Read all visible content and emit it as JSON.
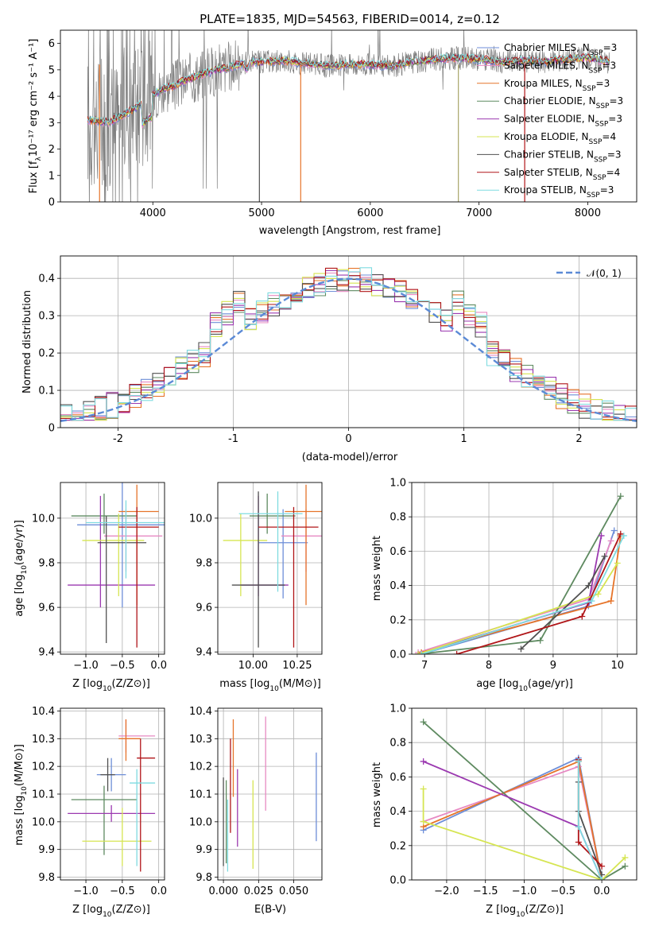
{
  "title": "PLATE=1835, MJD=54563, FIBERID=0014, z=0.12",
  "colors": [
    "#6d8ed8",
    "#e78ac3",
    "#e6742a",
    "#5e8a60",
    "#9b39b0",
    "#d6e552",
    "#505050",
    "#b01518",
    "#7fdbe0"
  ],
  "chart_data": [
    {
      "id": "spectrum",
      "type": "line",
      "xlabel": "wavelength [Angstrom, rest frame]",
      "ylabel_main": "Flux [f",
      "ylabel_sub": "λ",
      "ylabel_rest": "10⁻¹⁷ erg cm⁻² s⁻¹ A⁻¹]",
      "xlim": [
        3150,
        8450
      ],
      "ylim": [
        0,
        6.5
      ],
      "xticks": [
        4000,
        5000,
        6000,
        7000,
        8000
      ],
      "yticks": [
        0,
        1,
        2,
        3,
        4,
        5,
        6
      ],
      "series": [
        {
          "name": "Chabrier MILES",
          "ssp": "3"
        },
        {
          "name": "Salpeter MILES",
          "ssp": "3"
        },
        {
          "name": "Kroupa MILES",
          "ssp": "3"
        },
        {
          "name": "Chabrier ELODIE",
          "ssp": "3"
        },
        {
          "name": "Salpeter ELODIE",
          "ssp": "3"
        },
        {
          "name": "Kroupa ELODIE",
          "ssp": "4"
        },
        {
          "name": "Chabrier STELIB",
          "ssp": "3"
        },
        {
          "name": "Salpeter STELIB",
          "ssp": "4"
        },
        {
          "name": "Kroupa STELIB",
          "ssp": "3"
        }
      ],
      "continuum": {
        "x": [
          3400,
          3500,
          3600,
          3700,
          3800,
          3900,
          4000,
          4100,
          4200,
          4300,
          4400,
          4500,
          4600,
          4700,
          4800,
          4900,
          5000,
          5200,
          5400,
          5600,
          5800,
          6000,
          6200,
          6400,
          6600,
          6800,
          7000,
          7200,
          7400,
          7600,
          7800,
          8000,
          8200
        ],
        "y": [
          3.1,
          3.05,
          3.0,
          3.25,
          3.45,
          3.75,
          4.05,
          4.3,
          4.4,
          4.6,
          4.75,
          4.9,
          5.0,
          5.1,
          5.2,
          5.3,
          5.3,
          5.35,
          5.25,
          5.15,
          5.2,
          5.2,
          5.15,
          5.3,
          5.4,
          5.45,
          5.4,
          5.3,
          5.35,
          5.3,
          5.4,
          5.45,
          5.3
        ]
      },
      "spikes": [
        {
          "x": 3510,
          "color": "#e6742a"
        },
        {
          "x": 5360,
          "color": "#e6742a"
        },
        {
          "x": 6810,
          "color": "#a8a56a"
        },
        {
          "x": 7420,
          "color": "#b01518"
        },
        {
          "x": 4980,
          "color": "#505050"
        }
      ]
    },
    {
      "id": "residuals",
      "type": "step",
      "xlabel": "(data-model)/error",
      "ylabel": "Normed distribution",
      "xlim": [
        -2.5,
        2.5
      ],
      "ylim": [
        0,
        0.46
      ],
      "xticks": [
        -2,
        -1,
        0,
        1,
        2
      ],
      "yticks": [
        0.0,
        0.1,
        0.2,
        0.3,
        0.4
      ],
      "normal_label": "𝒩(0, 1)",
      "normal_color": "#5b8ad6",
      "bin_width": 0.1,
      "bin_start": -2.5
    },
    {
      "id": "z-age",
      "type": "errorbar",
      "xlabel_main": "Z [log",
      "xlabel_sub": "10",
      "xlabel_rest": "(Z/Z⊙)]",
      "ylabel_main": "age  [log",
      "ylabel_sub": "10",
      "ylabel_rest": "(age/yr)]",
      "xlim": [
        -1.35,
        0.08
      ],
      "ylim": [
        9.39,
        10.16
      ],
      "xticks": [
        -1.0,
        -0.5,
        0.0
      ],
      "xticklabels": [
        "−1.0",
        "−0.5",
        "0.0"
      ],
      "yticks": [
        9.4,
        9.6,
        9.8,
        10.0
      ],
      "yticklabels": [
        "9.4",
        "9.6",
        "9.8",
        "10.0"
      ],
      "points": [
        {
          "x": -0.5,
          "y": 9.97,
          "xerr": [
            0.62,
            0.62
          ],
          "yerr": [
            0.37,
            0.37
          ],
          "c": 0
        },
        {
          "x": -0.45,
          "y": 9.92,
          "xerr": [
            0.3,
            0.5
          ],
          "yerr": [
            0.16,
            0.12
          ],
          "c": 1
        },
        {
          "x": -0.3,
          "y": 10.03,
          "xerr": [
            0.25,
            0.3
          ],
          "yerr": [
            0.42,
            0.12
          ],
          "c": 2
        },
        {
          "x": -0.75,
          "y": 10.01,
          "xerr": [
            0.45,
            0.45
          ],
          "yerr": [
            0.08,
            0.1
          ],
          "c": 3
        },
        {
          "x": -0.8,
          "y": 9.7,
          "xerr": [
            0.45,
            0.75
          ],
          "yerr": [
            0.1,
            0.4
          ],
          "c": 4
        },
        {
          "x": -0.55,
          "y": 9.9,
          "xerr": [
            0.5,
            0.35
          ],
          "yerr": [
            0.25,
            0.12
          ],
          "c": 5
        },
        {
          "x": -0.72,
          "y": 9.89,
          "xerr": [
            0.12,
            0.55
          ],
          "yerr": [
            0.45,
            0.12
          ],
          "c": 6
        },
        {
          "x": -0.3,
          "y": 9.96,
          "xerr": [
            0.25,
            0.3
          ],
          "yerr": [
            0.54,
            0.09
          ],
          "c": 7
        },
        {
          "x": -0.45,
          "y": 9.98,
          "xerr": [
            0.55,
            0.55
          ],
          "yerr": [
            0.25,
            0.1
          ],
          "c": 8
        }
      ]
    },
    {
      "id": "mass-age",
      "type": "errorbar",
      "xlabel_main": "mass [log",
      "xlabel_sub": "10",
      "xlabel_rest": "(M/M⊙)]",
      "ylabel_main": "",
      "ylabel_sub": "",
      "ylabel_rest": "",
      "xlim": [
        9.8,
        10.39
      ],
      "ylim": [
        9.39,
        10.16
      ],
      "xticks": [
        10.0,
        10.25
      ],
      "xticklabels": [
        "10.00",
        "10.25"
      ],
      "yticks": [
        9.4,
        9.6,
        9.8,
        10.0
      ],
      "yticklabels": [
        "9.4",
        "9.6",
        "9.8",
        "10.0"
      ],
      "points": [
        {
          "x": 10.17,
          "y": 9.89,
          "xerr": [
            0.14,
            0.14
          ],
          "yerr": [
            0.25,
            0.15
          ],
          "c": 0
        },
        {
          "x": 10.3,
          "y": 9.92,
          "xerr": [
            0.14,
            0.12
          ],
          "yerr": [
            0.16,
            0.12
          ],
          "c": 1
        },
        {
          "x": 10.3,
          "y": 10.03,
          "xerr": [
            0.12,
            0.14
          ],
          "yerr": [
            0.42,
            0.12
          ],
          "c": 2
        },
        {
          "x": 10.08,
          "y": 10.01,
          "xerr": [
            0.1,
            0.16
          ],
          "yerr": [
            0.08,
            0.1
          ],
          "c": 3
        },
        {
          "x": 10.03,
          "y": 9.7,
          "xerr": [
            0.1,
            0.17
          ],
          "yerr": [
            0.05,
            0.4
          ],
          "c": 4
        },
        {
          "x": 9.93,
          "y": 9.9,
          "xerr": [
            0.1,
            0.15
          ],
          "yerr": [
            0.25,
            0.12
          ],
          "c": 5
        },
        {
          "x": 10.03,
          "y": 9.7,
          "xerr": [
            0.15,
            0.15
          ],
          "yerr": [
            0.28,
            0.42
          ],
          "c": 6
        },
        {
          "x": 10.23,
          "y": 9.96,
          "xerr": [
            0.2,
            0.14
          ],
          "yerr": [
            0.54,
            0.09
          ],
          "c": 7
        },
        {
          "x": 10.14,
          "y": 10.02,
          "xerr": [
            0.22,
            0.14
          ],
          "yerr": [
            0.35,
            0.1
          ],
          "c": 8
        }
      ]
    },
    {
      "id": "age-weight",
      "type": "line",
      "xlabel_main": "age  [log",
      "xlabel_sub": "10",
      "xlabel_rest": "(age/yr)]",
      "ylabel": "mass weight",
      "xlim": [
        6.8,
        10.3
      ],
      "ylim": [
        0,
        1.0
      ],
      "xticks": [
        7,
        8,
        9,
        10
      ],
      "yticks": [
        0.0,
        0.2,
        0.4,
        0.6,
        0.8,
        1.0
      ],
      "yticklabels": [
        "0.0",
        "0.2",
        "0.4",
        "0.6",
        "0.8",
        "1.0"
      ],
      "series": [
        {
          "c": 0,
          "x": [
            6.95,
            9.55,
            9.95
          ],
          "y": [
            0.0,
            0.28,
            0.72
          ]
        },
        {
          "c": 1,
          "x": [
            6.9,
            9.55,
            9.9
          ],
          "y": [
            0.01,
            0.32,
            0.66
          ]
        },
        {
          "c": 2,
          "x": [
            6.95,
            9.9,
            10.05
          ],
          "y": [
            0.01,
            0.31,
            0.69
          ]
        },
        {
          "c": 3,
          "x": [
            6.9,
            8.8,
            10.05
          ],
          "y": [
            0.0,
            0.08,
            0.92
          ]
        },
        {
          "c": 4,
          "x": [
            6.9,
            9.55,
            9.75
          ],
          "y": [
            0.0,
            0.3,
            0.69
          ]
        },
        {
          "c": 5,
          "x": [
            6.9,
            9.7,
            10.0
          ],
          "y": [
            0.0,
            0.35,
            0.53
          ]
        },
        {
          "c": 6,
          "x": [
            8.5,
            9.55,
            9.8
          ],
          "y": [
            0.03,
            0.4,
            0.57
          ]
        },
        {
          "c": 7,
          "x": [
            7.5,
            9.45,
            10.05
          ],
          "y": [
            0.0,
            0.22,
            0.7
          ]
        },
        {
          "c": 8,
          "x": [
            6.95,
            9.6,
            10.1
          ],
          "y": [
            0.0,
            0.31,
            0.69
          ]
        }
      ]
    },
    {
      "id": "z-mass",
      "type": "errorbar",
      "xlabel_main": "Z [log",
      "xlabel_sub": "10",
      "xlabel_rest": "(Z/Z⊙)]",
      "ylabel_main": "mass [log",
      "ylabel_sub": "10",
      "ylabel_rest": "(M/M⊙)]",
      "xlim": [
        -1.35,
        0.08
      ],
      "ylim": [
        9.79,
        10.41
      ],
      "xticks": [
        -1.0,
        -0.5,
        0.0
      ],
      "xticklabels": [
        "−1.0",
        "−0.5",
        "0.0"
      ],
      "yticks": [
        9.8,
        9.9,
        10.0,
        10.1,
        10.2,
        10.3,
        10.4
      ],
      "yticklabels": [
        "9.8",
        "9.9",
        "10.0",
        "10.1",
        "10.2",
        "10.3",
        "10.4"
      ],
      "points": [
        {
          "x": -0.65,
          "y": 10.17,
          "xerr": [
            0.2,
            0.2
          ],
          "yerr": [
            0.06,
            0.06
          ],
          "c": 0
        },
        {
          "x": -0.45,
          "y": 10.31,
          "xerr": [
            0.1,
            0.4
          ],
          "yerr": [
            0.06,
            0.06
          ],
          "c": 1
        },
        {
          "x": -0.45,
          "y": 10.3,
          "xerr": [
            0.1,
            0.2
          ],
          "yerr": [
            0.08,
            0.07
          ],
          "c": 2
        },
        {
          "x": -0.75,
          "y": 10.08,
          "xerr": [
            0.45,
            0.45
          ],
          "yerr": [
            0.2,
            0.05
          ],
          "c": 3
        },
        {
          "x": -0.65,
          "y": 10.03,
          "xerr": [
            0.6,
            0.6
          ],
          "yerr": [
            0.03,
            0.03
          ],
          "c": 4
        },
        {
          "x": -0.5,
          "y": 9.93,
          "xerr": [
            0.55,
            0.4
          ],
          "yerr": [
            0.09,
            0.12
          ],
          "c": 5
        },
        {
          "x": -0.7,
          "y": 10.17,
          "xerr": [
            0.1,
            0.1
          ],
          "yerr": [
            0.06,
            0.06
          ],
          "c": 6
        },
        {
          "x": -0.25,
          "y": 10.23,
          "xerr": [
            0.05,
            0.2
          ],
          "yerr": [
            0.41,
            0.07
          ],
          "c": 7
        },
        {
          "x": -0.3,
          "y": 10.14,
          "xerr": [
            0.1,
            0.25
          ],
          "yerr": [
            0.3,
            0.05
          ],
          "c": 8
        }
      ]
    },
    {
      "id": "ebv-mass",
      "type": "errorbar",
      "xlabel_main": "E(B-V)",
      "xlabel_sub": "",
      "xlabel_rest": "",
      "ylabel_main": "",
      "ylabel_sub": "",
      "ylabel_rest": "",
      "xlim": [
        -0.004,
        0.07
      ],
      "ylim": [
        9.79,
        10.41
      ],
      "xticks": [
        0.0,
        0.025,
        0.05
      ],
      "xticklabels": [
        "0.000",
        "0.025",
        "0.050"
      ],
      "yticks": [
        9.8,
        9.9,
        10.0,
        10.1,
        10.2,
        10.3,
        10.4
      ],
      "yticklabels": [
        "9.8",
        "9.9",
        "10.0",
        "10.1",
        "10.2",
        "10.3",
        "10.4"
      ],
      "points": [
        {
          "x": 0.066,
          "y": 10.09,
          "xerr": [
            0,
            0
          ],
          "yerr": [
            0.16,
            0.16
          ],
          "c": 0
        },
        {
          "x": 0.03,
          "y": 10.21,
          "xerr": [
            0,
            0
          ],
          "yerr": [
            0.17,
            0.17
          ],
          "c": 1
        },
        {
          "x": 0.007,
          "y": 10.23,
          "xerr": [
            0,
            0
          ],
          "yerr": [
            0.14,
            0.14
          ],
          "c": 2
        },
        {
          "x": 0.002,
          "y": 10.0,
          "xerr": [
            0,
            0
          ],
          "yerr": [
            0.15,
            0.15
          ],
          "c": 3
        },
        {
          "x": 0.01,
          "y": 10.05,
          "xerr": [
            0,
            0
          ],
          "yerr": [
            0.14,
            0.14
          ],
          "c": 4
        },
        {
          "x": 0.021,
          "y": 9.99,
          "xerr": [
            0,
            0
          ],
          "yerr": [
            0.16,
            0.16
          ],
          "c": 5
        },
        {
          "x": 0.0,
          "y": 10.0,
          "xerr": [
            0,
            0
          ],
          "yerr": [
            0.16,
            0.16
          ],
          "c": 6
        },
        {
          "x": 0.005,
          "y": 10.13,
          "xerr": [
            0,
            0
          ],
          "yerr": [
            0.17,
            0.17
          ],
          "c": 7
        },
        {
          "x": 0.003,
          "y": 9.95,
          "xerr": [
            0,
            0
          ],
          "yerr": [
            0.13,
            0.13
          ],
          "c": 8
        }
      ]
    },
    {
      "id": "z-weight",
      "type": "line",
      "xlabel_main": "Z [log",
      "xlabel_sub": "10",
      "xlabel_rest": "(Z/Z⊙)]",
      "ylabel": "mass weight",
      "xlim": [
        -2.45,
        0.45
      ],
      "ylim": [
        0,
        1.0
      ],
      "xticks": [
        -2.0,
        -1.5,
        -1.0,
        -0.5,
        0.0
      ],
      "xticklabels": [
        "−2.0",
        "−1.5",
        "−1.0",
        "−0.5",
        "0.0"
      ],
      "yticks": [
        0.0,
        0.2,
        0.4,
        0.6,
        0.8,
        1.0
      ],
      "yticklabels": [
        "0.0",
        "0.2",
        "0.4",
        "0.6",
        "0.8",
        "1.0"
      ],
      "series": [
        {
          "c": 0,
          "x": [
            -2.3,
            -0.3,
            0.0
          ],
          "y": [
            0.29,
            0.71,
            0.0
          ]
        },
        {
          "c": 1,
          "x": [
            -2.3,
            -0.3,
            0.0
          ],
          "y": [
            0.34,
            0.66,
            0.0
          ]
        },
        {
          "c": 2,
          "x": [
            -2.3,
            -0.3,
            0.0
          ],
          "y": [
            0.31,
            0.69,
            0.0
          ]
        },
        {
          "c": 3,
          "x": [
            -2.3,
            0.0,
            0.3
          ],
          "y": [
            0.92,
            0.0,
            0.08
          ]
        },
        {
          "c": 4,
          "x": [
            -2.3,
            -0.3,
            0.0
          ],
          "y": [
            0.69,
            0.31,
            0.0
          ]
        },
        {
          "c": 5,
          "x": [
            -2.3,
            -2.3,
            0.0,
            0.3
          ],
          "y": [
            0.53,
            0.34,
            0.0,
            0.13
          ]
        },
        {
          "c": 6,
          "x": [
            -0.3,
            -0.3,
            0.0
          ],
          "y": [
            0.57,
            0.4,
            0.03
          ]
        },
        {
          "c": 7,
          "x": [
            -0.3,
            -0.3,
            0.0
          ],
          "y": [
            0.7,
            0.22,
            0.08
          ]
        },
        {
          "c": 8,
          "x": [
            -0.3,
            -0.3,
            0.0
          ],
          "y": [
            0.69,
            0.31,
            0.0
          ]
        }
      ]
    }
  ]
}
